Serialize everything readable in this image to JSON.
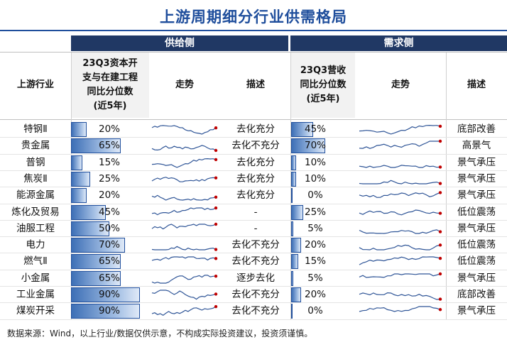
{
  "title": "上游周期细分行业供需格局",
  "headers": {
    "supply_group": "供给侧",
    "demand_group": "需求侧",
    "industry": "上游行业",
    "capex": [
      "23Q3资本开",
      "支与在建工程",
      "同比分位数",
      "(近5年)"
    ],
    "trend": "走势",
    "desc": "描述",
    "revenue": [
      "23Q3营收",
      "同比分位数",
      "(近5年)"
    ]
  },
  "rows": [
    {
      "industry": "特钢Ⅱ",
      "capex_pct": "20%",
      "capex_value": 20,
      "supply_desc": "去化充分",
      "rev_pct": "45%",
      "rev_value": 45,
      "demand_desc": "底部改善"
    },
    {
      "industry": "贵金属",
      "capex_pct": "65%",
      "capex_value": 65,
      "supply_desc": "去化不充分",
      "rev_pct": "70%",
      "rev_value": 70,
      "demand_desc": "高景气"
    },
    {
      "industry": "普钢",
      "capex_pct": "15%",
      "capex_value": 15,
      "supply_desc": "去化充分",
      "rev_pct": "10%",
      "rev_value": 10,
      "demand_desc": "景气承压"
    },
    {
      "industry": "焦炭Ⅱ",
      "capex_pct": "25%",
      "capex_value": 25,
      "supply_desc": "去化充分",
      "rev_pct": "10%",
      "rev_value": 10,
      "demand_desc": "景气承压"
    },
    {
      "industry": "能源金属",
      "capex_pct": "20%",
      "capex_value": 20,
      "supply_desc": "去化充分",
      "rev_pct": "0%",
      "rev_value": 0,
      "demand_desc": "景气承压"
    },
    {
      "industry": "炼化及贸易",
      "capex_pct": "45%",
      "capex_value": 45,
      "supply_desc": "-",
      "rev_pct": "25%",
      "rev_value": 25,
      "demand_desc": "低位震荡"
    },
    {
      "industry": "油服工程",
      "capex_pct": "50%",
      "capex_value": 50,
      "supply_desc": "-",
      "rev_pct": "5%",
      "rev_value": 5,
      "demand_desc": "景气承压"
    },
    {
      "industry": "电力",
      "capex_pct": "70%",
      "capex_value": 70,
      "supply_desc": "去化不充分",
      "rev_pct": "20%",
      "rev_value": 20,
      "demand_desc": "低位震荡"
    },
    {
      "industry": "燃气Ⅱ",
      "capex_pct": "65%",
      "capex_value": 65,
      "supply_desc": "去化不充分",
      "rev_pct": "15%",
      "rev_value": 15,
      "demand_desc": "低位震荡"
    },
    {
      "industry": "小金属",
      "capex_pct": "65%",
      "capex_value": 65,
      "supply_desc": "逐步去化",
      "rev_pct": "5%",
      "rev_value": 5,
      "demand_desc": "景气承压"
    },
    {
      "industry": "工业金属",
      "capex_pct": "90%",
      "capex_value": 90,
      "supply_desc": "去化不充分",
      "rev_pct": "20%",
      "rev_value": 20,
      "demand_desc": "底部改善"
    },
    {
      "industry": "煤炭开采",
      "capex_pct": "90%",
      "capex_value": 90,
      "supply_desc": "去化不充分",
      "rev_pct": "0%",
      "rev_value": 0,
      "demand_desc": "景气承压"
    }
  ],
  "colors": {
    "header_bg": "#203864",
    "title": "#1f4e9c",
    "bar_border": "#1f4e9c",
    "spark_line": "#2f5597",
    "spark_end": "#c00000"
  },
  "footer": "数据来源：Wind，以上行业/数据仅供示意，不构成实际投资建议，投资须谨慎。"
}
